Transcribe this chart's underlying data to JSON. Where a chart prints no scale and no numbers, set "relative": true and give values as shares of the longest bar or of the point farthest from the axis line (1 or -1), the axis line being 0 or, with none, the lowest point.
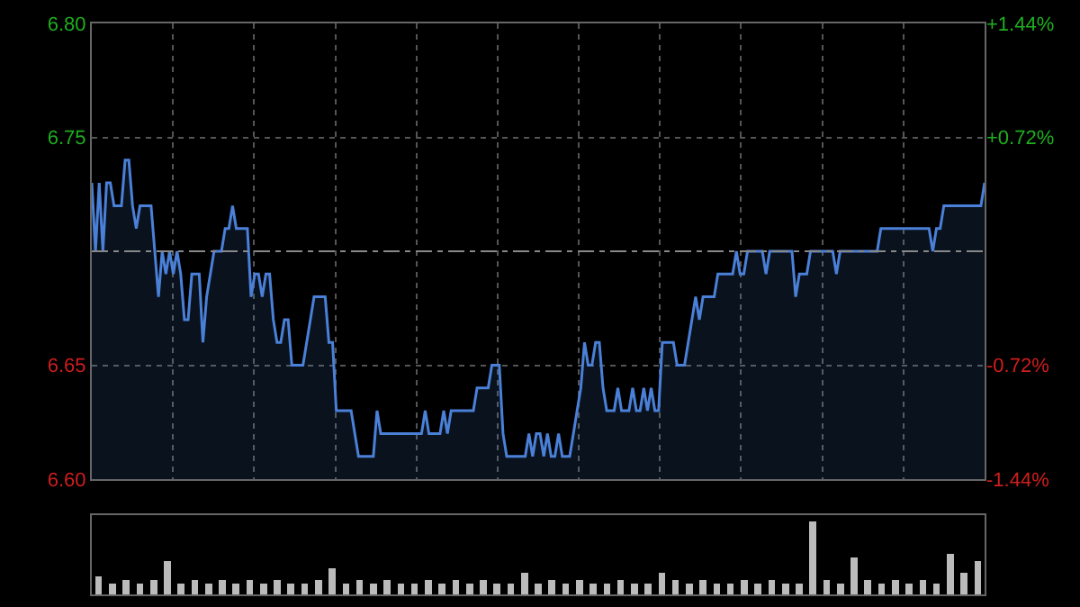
{
  "chart_data": [
    {
      "type": "area",
      "color": "#4a80d8",
      "categories": [
        null,
        null,
        null,
        null,
        null,
        null,
        null,
        null,
        null,
        null,
        null,
        null,
        null,
        null,
        null,
        null,
        null,
        null,
        null,
        null,
        null,
        null,
        null,
        null,
        null,
        null,
        null,
        null,
        null,
        null,
        null,
        null,
        null,
        null,
        null,
        null,
        null,
        null,
        null,
        null,
        null,
        null,
        null,
        null,
        null,
        null,
        null,
        null,
        null,
        null,
        null,
        null,
        null,
        null,
        null,
        null,
        null,
        null,
        null,
        null,
        null,
        null,
        null,
        null,
        null,
        null,
        null,
        null,
        null,
        null,
        null,
        null,
        null,
        null,
        null,
        null,
        null,
        null,
        null,
        null,
        null,
        null,
        null,
        null,
        null,
        null,
        null,
        null,
        null,
        null,
        null,
        null,
        null,
        null,
        null,
        null,
        null,
        null,
        null,
        null,
        null,
        null,
        null,
        null,
        null,
        null,
        null,
        null,
        null,
        null,
        null,
        null,
        null,
        null,
        null,
        null,
        null,
        null,
        null,
        null,
        null,
        null,
        null,
        null,
        null,
        null,
        null,
        null,
        null,
        null,
        null,
        null,
        null,
        null,
        null,
        null,
        null,
        null,
        null,
        null,
        null,
        null,
        null,
        null,
        null,
        null,
        null,
        null,
        null,
        null,
        null,
        null,
        null,
        null,
        null,
        null,
        null,
        null,
        null,
        null,
        null,
        null,
        null,
        null,
        null,
        null,
        null,
        null,
        null,
        null,
        null,
        null,
        null,
        null,
        null,
        null,
        null,
        null,
        null,
        null,
        null,
        null,
        null,
        null,
        null,
        null,
        null,
        null,
        null,
        null,
        null,
        null,
        null,
        null,
        null,
        null,
        null,
        null,
        null,
        null,
        null,
        null,
        null,
        null,
        null,
        null,
        null,
        null,
        null,
        null,
        null,
        null,
        null,
        null,
        null,
        null,
        null,
        null,
        null,
        null,
        null,
        null,
        null,
        null,
        null,
        null,
        null,
        null,
        null,
        null,
        null,
        null,
        null,
        null,
        null,
        null,
        null,
        null,
        null,
        null,
        null,
        null
      ],
      "values": [
        6.73,
        6.7,
        6.73,
        6.7,
        6.73,
        6.73,
        6.72,
        6.72,
        6.72,
        6.74,
        6.74,
        6.72,
        6.71,
        6.72,
        6.72,
        6.72,
        6.72,
        6.7,
        6.68,
        6.7,
        6.69,
        6.7,
        6.69,
        6.7,
        6.69,
        6.67,
        6.67,
        6.69,
        6.69,
        6.69,
        6.66,
        6.68,
        6.69,
        6.7,
        6.7,
        6.7,
        6.71,
        6.71,
        6.72,
        6.71,
        6.71,
        6.71,
        6.71,
        6.68,
        6.69,
        6.69,
        6.68,
        6.69,
        6.69,
        6.67,
        6.66,
        6.66,
        6.67,
        6.67,
        6.65,
        6.65,
        6.65,
        6.65,
        6.66,
        6.67,
        6.68,
        6.68,
        6.68,
        6.68,
        6.66,
        6.66,
        6.63,
        6.63,
        6.63,
        6.63,
        6.63,
        6.62,
        6.61,
        6.61,
        6.61,
        6.61,
        6.61,
        6.63,
        6.62,
        6.62,
        6.62,
        6.62,
        6.62,
        6.62,
        6.62,
        6.62,
        6.62,
        6.62,
        6.62,
        6.62,
        6.63,
        6.62,
        6.62,
        6.62,
        6.62,
        6.63,
        6.62,
        6.63,
        6.63,
        6.63,
        6.63,
        6.63,
        6.63,
        6.63,
        6.64,
        6.64,
        6.64,
        6.64,
        6.65,
        6.65,
        6.65,
        6.62,
        6.61,
        6.61,
        6.61,
        6.61,
        6.61,
        6.61,
        6.62,
        6.61,
        6.62,
        6.62,
        6.61,
        6.62,
        6.61,
        6.61,
        6.62,
        6.61,
        6.61,
        6.61,
        6.62,
        6.63,
        6.64,
        6.66,
        6.65,
        6.65,
        6.66,
        6.66,
        6.64,
        6.63,
        6.63,
        6.63,
        6.64,
        6.63,
        6.63,
        6.63,
        6.64,
        6.63,
        6.63,
        6.64,
        6.63,
        6.64,
        6.63,
        6.63,
        6.66,
        6.66,
        6.66,
        6.66,
        6.65,
        6.65,
        6.65,
        6.66,
        6.67,
        6.68,
        6.67,
        6.68,
        6.68,
        6.68,
        6.68,
        6.69,
        6.69,
        6.69,
        6.69,
        6.69,
        6.7,
        6.69,
        6.69,
        6.7,
        6.7,
        6.7,
        6.7,
        6.7,
        6.69,
        6.7,
        6.7,
        6.7,
        6.7,
        6.7,
        6.7,
        6.7,
        6.68,
        6.69,
        6.69,
        6.69,
        6.7,
        6.7,
        6.7,
        6.7,
        6.7,
        6.7,
        6.7,
        6.69,
        6.7,
        6.7,
        6.7,
        6.7,
        6.7,
        6.7,
        6.7,
        6.7,
        6.7,
        6.7,
        6.7,
        6.71,
        6.71,
        6.71,
        6.71,
        6.71,
        6.71,
        6.71,
        6.71,
        6.71,
        6.71,
        6.71,
        6.71,
        6.71,
        6.71,
        6.7,
        6.71,
        6.71,
        6.72,
        6.72,
        6.72,
        6.72,
        6.72,
        6.72,
        6.72,
        6.72,
        6.72,
        6.72,
        6.72,
        6.73
      ],
      "ylim": [
        6.6,
        6.8
      ],
      "yticks": [
        {
          "value": 6.6,
          "label": "6.60"
        },
        {
          "value": 6.65,
          "label": "6.65"
        },
        {
          "value": 6.75,
          "label": "6.75"
        },
        {
          "value": 6.8,
          "label": "6.80"
        }
      ],
      "y2lim": [
        -1.44,
        1.44
      ],
      "y2ticks": [
        {
          "value": -1.44,
          "label": "-1.44%"
        },
        {
          "value": -0.72,
          "label": "-0.72%"
        },
        {
          "value": 0.72,
          "label": "+0.72%"
        },
        {
          "value": 1.44,
          "label": "+1.44%"
        }
      ],
      "ref_lines": [
        {
          "axis": "y",
          "value": 6.7,
          "color": "#888888",
          "line_style": "dashed"
        }
      ],
      "grid": true,
      "tick_labels": "y"
    },
    {
      "type": "bar",
      "relative": true,
      "color": "#bbbbbb",
      "tick_labels": false,
      "categories": [
        null,
        null,
        null,
        null,
        null,
        null,
        null,
        null,
        null,
        null,
        null,
        null,
        null,
        null,
        null,
        null,
        null,
        null,
        null,
        null,
        null,
        null,
        null,
        null,
        null,
        null,
        null,
        null,
        null,
        null,
        null,
        null,
        null,
        null,
        null,
        null,
        null,
        null,
        null,
        null,
        null,
        null,
        null,
        null,
        null,
        null,
        null,
        null,
        null,
        null,
        null,
        null,
        null,
        null,
        null,
        null,
        null,
        null,
        null,
        null,
        null,
        null,
        null,
        null,
        null
      ],
      "values": [
        0.25,
        0.15,
        0.2,
        0.15,
        0.2,
        0.45,
        0.15,
        0.2,
        0.15,
        0.2,
        0.15,
        0.2,
        0.15,
        0.2,
        0.15,
        0.15,
        0.2,
        0.35,
        0.15,
        0.2,
        0.15,
        0.2,
        0.15,
        0.15,
        0.2,
        0.15,
        0.2,
        0.15,
        0.2,
        0.15,
        0.15,
        0.3,
        0.15,
        0.2,
        0.15,
        0.2,
        0.15,
        0.15,
        0.2,
        0.15,
        0.15,
        0.3,
        0.2,
        0.15,
        0.2,
        0.15,
        0.15,
        0.2,
        0.15,
        0.2,
        0.15,
        0.15,
        1,
        0.2,
        0.15,
        0.5,
        0.2,
        0.15,
        0.2,
        0.15,
        0.2,
        0.15,
        0.55,
        0.3,
        0.45
      ]
    }
  ]
}
